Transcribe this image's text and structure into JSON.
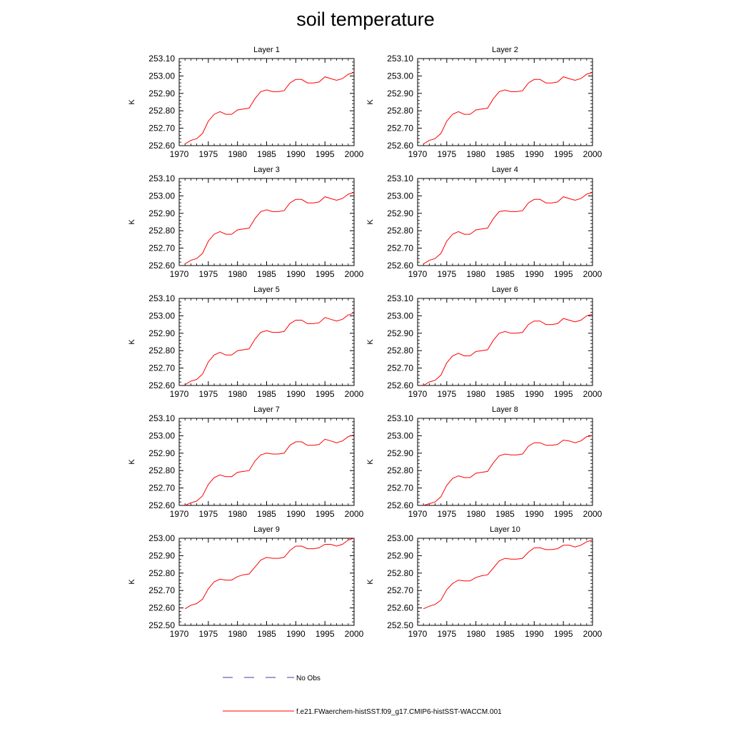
{
  "title": "soil temperature",
  "legend": {
    "obs_label": "No Obs",
    "model_label": "f.e21.FWaerchem-histSST.f09_g17.CMIP6-histSST-WACCM.001",
    "obs_color": "#3f3fa6",
    "model_color": "#ff0000"
  },
  "chart_data": [
    {
      "type": "line",
      "title": "Layer 1",
      "ylabel": "K",
      "xlim": [
        1970,
        2000
      ],
      "ylim": [
        252.6,
        253.1
      ],
      "xticks": [
        1970,
        1975,
        1980,
        1985,
        1990,
        1995,
        2000
      ],
      "yticks": [
        "252.60",
        "252.70",
        "252.80",
        "252.90",
        "253.00",
        "253.10"
      ],
      "series": [
        {
          "name": "f.e21.FWaerchem-histSST.f09_g17.CMIP6-histSST-WACCM.001",
          "color": "#ff0000",
          "x": [
            1971,
            1972,
            1973,
            1974,
            1975,
            1976,
            1977,
            1978,
            1979,
            1980,
            1981,
            1982,
            1983,
            1984,
            1985,
            1986,
            1987,
            1988,
            1989,
            1990,
            1991,
            1992,
            1993,
            1994,
            1995,
            1996,
            1997,
            1998,
            1999,
            2000
          ],
          "y": [
            252.61,
            252.63,
            252.64,
            252.67,
            252.74,
            252.78,
            252.795,
            252.78,
            252.78,
            252.805,
            252.81,
            252.815,
            252.87,
            252.91,
            252.92,
            252.91,
            252.91,
            252.915,
            252.96,
            252.98,
            252.98,
            252.96,
            252.96,
            252.965,
            252.995,
            252.985,
            252.975,
            252.985,
            253.01,
            253.02
          ]
        }
      ]
    },
    {
      "type": "line",
      "title": "Layer 2",
      "ylabel": "K",
      "xlim": [
        1970,
        2000
      ],
      "ylim": [
        252.6,
        253.1
      ],
      "xticks": [
        1970,
        1975,
        1980,
        1985,
        1990,
        1995,
        2000
      ],
      "yticks": [
        "252.60",
        "252.70",
        "252.80",
        "252.90",
        "253.00",
        "253.10"
      ],
      "series": [
        {
          "name": "f.e21.FWaerchem-histSST.f09_g17.CMIP6-histSST-WACCM.001",
          "color": "#ff0000",
          "x": [
            1971,
            1972,
            1973,
            1974,
            1975,
            1976,
            1977,
            1978,
            1979,
            1980,
            1981,
            1982,
            1983,
            1984,
            1985,
            1986,
            1987,
            1988,
            1989,
            1990,
            1991,
            1992,
            1993,
            1994,
            1995,
            1996,
            1997,
            1998,
            1999,
            2000
          ],
          "y": [
            252.61,
            252.63,
            252.64,
            252.67,
            252.74,
            252.78,
            252.795,
            252.78,
            252.78,
            252.805,
            252.81,
            252.815,
            252.87,
            252.91,
            252.92,
            252.91,
            252.91,
            252.915,
            252.96,
            252.98,
            252.98,
            252.96,
            252.96,
            252.965,
            252.995,
            252.985,
            252.975,
            252.985,
            253.01,
            253.02
          ]
        }
      ]
    },
    {
      "type": "line",
      "title": "Layer 3",
      "ylabel": "K",
      "xlim": [
        1970,
        2000
      ],
      "ylim": [
        252.6,
        253.1
      ],
      "xticks": [
        1970,
        1975,
        1980,
        1985,
        1990,
        1995,
        2000
      ],
      "yticks": [
        "252.60",
        "252.70",
        "252.80",
        "252.90",
        "253.00",
        "253.10"
      ],
      "series": [
        {
          "name": "f.e21.FWaerchem-histSST.f09_g17.CMIP6-histSST-WACCM.001",
          "color": "#ff0000",
          "x": [
            1971,
            1972,
            1973,
            1974,
            1975,
            1976,
            1977,
            1978,
            1979,
            1980,
            1981,
            1982,
            1983,
            1984,
            1985,
            1986,
            1987,
            1988,
            1989,
            1990,
            1991,
            1992,
            1993,
            1994,
            1995,
            1996,
            1997,
            1998,
            1999,
            2000
          ],
          "y": [
            252.61,
            252.63,
            252.64,
            252.67,
            252.74,
            252.78,
            252.795,
            252.78,
            252.78,
            252.805,
            252.81,
            252.815,
            252.87,
            252.91,
            252.92,
            252.91,
            252.91,
            252.915,
            252.96,
            252.98,
            252.98,
            252.96,
            252.96,
            252.965,
            252.995,
            252.985,
            252.975,
            252.985,
            253.01,
            253.02
          ]
        }
      ]
    },
    {
      "type": "line",
      "title": "Layer 4",
      "ylabel": "K",
      "xlim": [
        1970,
        2000
      ],
      "ylim": [
        252.6,
        253.1
      ],
      "xticks": [
        1970,
        1975,
        1980,
        1985,
        1990,
        1995,
        2000
      ],
      "yticks": [
        "252.60",
        "252.70",
        "252.80",
        "252.90",
        "253.00",
        "253.10"
      ],
      "series": [
        {
          "name": "f.e21.FWaerchem-histSST.f09_g17.CMIP6-histSST-WACCM.001",
          "color": "#ff0000",
          "x": [
            1971,
            1972,
            1973,
            1974,
            1975,
            1976,
            1977,
            1978,
            1979,
            1980,
            1981,
            1982,
            1983,
            1984,
            1985,
            1986,
            1987,
            1988,
            1989,
            1990,
            1991,
            1992,
            1993,
            1994,
            1995,
            1996,
            1997,
            1998,
            1999,
            2000
          ],
          "y": [
            252.61,
            252.63,
            252.64,
            252.67,
            252.74,
            252.78,
            252.795,
            252.78,
            252.78,
            252.805,
            252.81,
            252.815,
            252.87,
            252.91,
            252.915,
            252.91,
            252.91,
            252.915,
            252.96,
            252.98,
            252.98,
            252.96,
            252.96,
            252.965,
            252.995,
            252.985,
            252.975,
            252.985,
            253.01,
            253.02
          ]
        }
      ]
    },
    {
      "type": "line",
      "title": "Layer 5",
      "ylabel": "K",
      "xlim": [
        1970,
        2000
      ],
      "ylim": [
        252.6,
        253.1
      ],
      "xticks": [
        1970,
        1975,
        1980,
        1985,
        1990,
        1995,
        2000
      ],
      "yticks": [
        "252.60",
        "252.70",
        "252.80",
        "252.90",
        "253.00",
        "253.10"
      ],
      "series": [
        {
          "name": "f.e21.FWaerchem-histSST.f09_g17.CMIP6-histSST-WACCM.001",
          "color": "#ff0000",
          "x": [
            1971,
            1972,
            1973,
            1974,
            1975,
            1976,
            1977,
            1978,
            1979,
            1980,
            1981,
            1982,
            1983,
            1984,
            1985,
            1986,
            1987,
            1988,
            1989,
            1990,
            1991,
            1992,
            1993,
            1994,
            1995,
            1996,
            1997,
            1998,
            1999,
            2000
          ],
          "y": [
            252.605,
            252.625,
            252.635,
            252.665,
            252.735,
            252.775,
            252.79,
            252.775,
            252.775,
            252.8,
            252.805,
            252.81,
            252.865,
            252.905,
            252.915,
            252.905,
            252.905,
            252.91,
            252.955,
            252.975,
            252.975,
            252.955,
            252.955,
            252.96,
            252.99,
            252.98,
            252.97,
            252.98,
            253.005,
            253.015
          ]
        }
      ]
    },
    {
      "type": "line",
      "title": "Layer 6",
      "ylabel": "K",
      "xlim": [
        1970,
        2000
      ],
      "ylim": [
        252.6,
        253.1
      ],
      "xticks": [
        1970,
        1975,
        1980,
        1985,
        1990,
        1995,
        2000
      ],
      "yticks": [
        "252.60",
        "252.70",
        "252.80",
        "252.90",
        "253.00",
        "253.10"
      ],
      "series": [
        {
          "name": "f.e21.FWaerchem-histSST.f09_g17.CMIP6-histSST-WACCM.001",
          "color": "#ff0000",
          "x": [
            1971,
            1972,
            1973,
            1974,
            1975,
            1976,
            1977,
            1978,
            1979,
            1980,
            1981,
            1982,
            1983,
            1984,
            1985,
            1986,
            1987,
            1988,
            1989,
            1990,
            1991,
            1992,
            1993,
            1994,
            1995,
            1996,
            1997,
            1998,
            1999,
            2000
          ],
          "y": [
            252.6,
            252.62,
            252.63,
            252.66,
            252.73,
            252.77,
            252.785,
            252.77,
            252.77,
            252.795,
            252.8,
            252.805,
            252.86,
            252.9,
            252.91,
            252.9,
            252.9,
            252.905,
            252.95,
            252.97,
            252.97,
            252.95,
            252.95,
            252.955,
            252.985,
            252.975,
            252.965,
            252.975,
            253.0,
            253.01
          ]
        }
      ]
    },
    {
      "type": "line",
      "title": "Layer 7",
      "ylabel": "K",
      "xlim": [
        1970,
        2000
      ],
      "ylim": [
        252.6,
        253.1
      ],
      "xticks": [
        1970,
        1975,
        1980,
        1985,
        1990,
        1995,
        2000
      ],
      "yticks": [
        "252.60",
        "252.70",
        "252.80",
        "252.90",
        "253.00",
        "253.10"
      ],
      "series": [
        {
          "name": "f.e21.FWaerchem-histSST.f09_g17.CMIP6-histSST-WACCM.001",
          "color": "#ff0000",
          "x": [
            1971,
            1972,
            1973,
            1974,
            1975,
            1976,
            1977,
            1978,
            1979,
            1980,
            1981,
            1982,
            1983,
            1984,
            1985,
            1986,
            1987,
            1988,
            1989,
            1990,
            1991,
            1992,
            1993,
            1994,
            1995,
            1996,
            1997,
            1998,
            1999,
            2000
          ],
          "y": [
            252.6,
            252.615,
            252.625,
            252.655,
            252.72,
            252.76,
            252.775,
            252.765,
            252.765,
            252.79,
            252.795,
            252.8,
            252.855,
            252.89,
            252.9,
            252.895,
            252.895,
            252.9,
            252.945,
            252.965,
            252.965,
            252.945,
            252.945,
            252.95,
            252.98,
            252.97,
            252.96,
            252.97,
            252.995,
            253.005
          ]
        }
      ]
    },
    {
      "type": "line",
      "title": "Layer 8",
      "ylabel": "K",
      "xlim": [
        1970,
        2000
      ],
      "ylim": [
        252.6,
        253.1
      ],
      "xticks": [
        1970,
        1975,
        1980,
        1985,
        1990,
        1995,
        2000
      ],
      "yticks": [
        "252.60",
        "252.70",
        "252.80",
        "252.90",
        "253.00",
        "253.10"
      ],
      "series": [
        {
          "name": "f.e21.FWaerchem-histSST.f09_g17.CMIP6-histSST-WACCM.001",
          "color": "#ff0000",
          "x": [
            1971,
            1972,
            1973,
            1974,
            1975,
            1976,
            1977,
            1978,
            1979,
            1980,
            1981,
            1982,
            1983,
            1984,
            1985,
            1986,
            1987,
            1988,
            1989,
            1990,
            1991,
            1992,
            1993,
            1994,
            1995,
            1996,
            1997,
            1998,
            1999,
            2000
          ],
          "y": [
            252.6,
            252.61,
            252.62,
            252.65,
            252.715,
            252.755,
            252.77,
            252.76,
            252.76,
            252.785,
            252.79,
            252.795,
            252.845,
            252.885,
            252.895,
            252.89,
            252.89,
            252.895,
            252.94,
            252.96,
            252.96,
            252.945,
            252.945,
            252.95,
            252.975,
            252.97,
            252.96,
            252.97,
            252.995,
            253.0
          ]
        }
      ]
    },
    {
      "type": "line",
      "title": "Layer 9",
      "ylabel": "K",
      "xlim": [
        1970,
        2000
      ],
      "ylim": [
        252.5,
        253.0
      ],
      "xticks": [
        1970,
        1975,
        1980,
        1985,
        1990,
        1995,
        2000
      ],
      "yticks": [
        "252.50",
        "252.60",
        "252.70",
        "252.80",
        "252.90",
        "253.00"
      ],
      "series": [
        {
          "name": "f.e21.FWaerchem-histSST.f09_g17.CMIP6-histSST-WACCM.001",
          "color": "#ff0000",
          "x": [
            1971,
            1972,
            1973,
            1974,
            1975,
            1976,
            1977,
            1978,
            1979,
            1980,
            1981,
            1982,
            1983,
            1984,
            1985,
            1986,
            1987,
            1988,
            1989,
            1990,
            1991,
            1992,
            1993,
            1994,
            1995,
            1996,
            1997,
            1998,
            1999,
            2000
          ],
          "y": [
            252.595,
            252.615,
            252.625,
            252.65,
            252.71,
            252.75,
            252.765,
            252.76,
            252.76,
            252.78,
            252.79,
            252.795,
            252.835,
            252.875,
            252.89,
            252.885,
            252.885,
            252.89,
            252.93,
            252.955,
            252.955,
            252.94,
            252.94,
            252.945,
            252.965,
            252.965,
            252.955,
            252.965,
            252.99,
            253.0
          ]
        }
      ]
    },
    {
      "type": "line",
      "title": "Layer 10",
      "ylabel": "K",
      "xlim": [
        1970,
        2000
      ],
      "ylim": [
        252.5,
        253.0
      ],
      "xticks": [
        1970,
        1975,
        1980,
        1985,
        1990,
        1995,
        2000
      ],
      "yticks": [
        "252.50",
        "252.60",
        "252.70",
        "252.80",
        "252.90",
        "253.00"
      ],
      "series": [
        {
          "name": "f.e21.FWaerchem-histSST.f09_g17.CMIP6-histSST-WACCM.001",
          "color": "#ff0000",
          "x": [
            1971,
            1972,
            1973,
            1974,
            1975,
            1976,
            1977,
            1978,
            1979,
            1980,
            1981,
            1982,
            1983,
            1984,
            1985,
            1986,
            1987,
            1988,
            1989,
            1990,
            1991,
            1992,
            1993,
            1994,
            1995,
            1996,
            1997,
            1998,
            1999,
            2000
          ],
          "y": [
            252.595,
            252.61,
            252.62,
            252.645,
            252.705,
            252.74,
            252.76,
            252.755,
            252.755,
            252.775,
            252.785,
            252.79,
            252.83,
            252.87,
            252.885,
            252.88,
            252.88,
            252.885,
            252.92,
            252.945,
            252.945,
            252.935,
            252.935,
            252.94,
            252.96,
            252.96,
            252.95,
            252.96,
            252.98,
            252.99
          ]
        }
      ]
    }
  ]
}
